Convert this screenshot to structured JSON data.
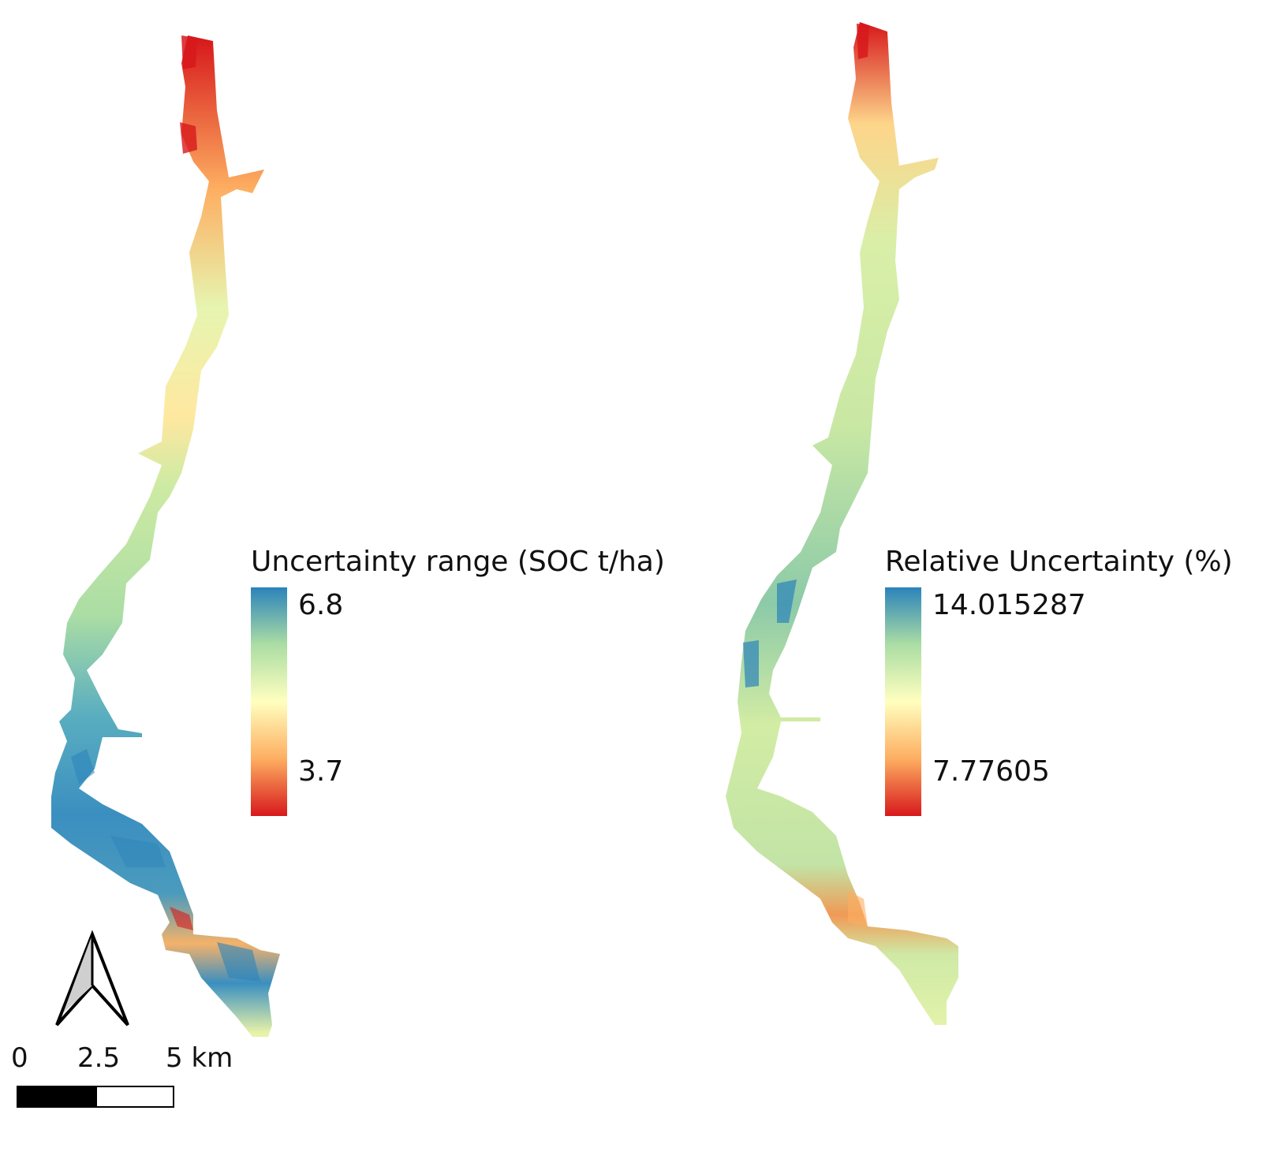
{
  "colors": {
    "ramp": [
      "#d7191c",
      "#fdae61",
      "#ffffbf",
      "#abdda4",
      "#2b83ba"
    ],
    "outline": "#000000"
  },
  "icons": {
    "north_arrow": "north-arrow-icon"
  },
  "left_map": {
    "legend_title": "Uncertainty range (SOC t/ha)",
    "legend_max": "6.8",
    "legend_min": "3.7"
  },
  "right_map": {
    "legend_title": "Relative Uncertainty (%)",
    "legend_max": "14.015287",
    "legend_min": "7.77605"
  },
  "scale_bar": {
    "label_0": "0",
    "label_mid": "2.5",
    "label_end": "5 km"
  }
}
